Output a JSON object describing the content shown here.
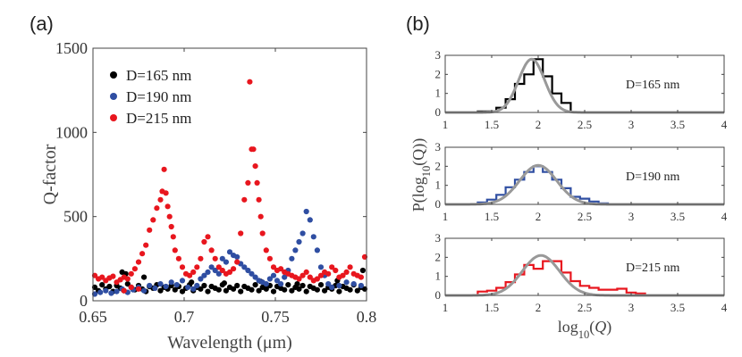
{
  "panel_labels": {
    "a": "(a)",
    "b": "(b)"
  },
  "colors": {
    "black": "#000000",
    "blue": "#2f4ea2",
    "red": "#e8161e",
    "fit": "#999999",
    "axis": "#444444"
  },
  "chart_data": [
    {
      "type": "scatter",
      "panel": "(a)",
      "title": "",
      "xlabel": "Wavelength (μm)",
      "ylabel": "Q-factor",
      "xlim": [
        0.65,
        0.8
      ],
      "ylim": [
        0,
        1500
      ],
      "xticks": [
        "0.65",
        "0.7",
        "0.75",
        "0.8"
      ],
      "yticks": [
        "0",
        "500",
        "1000",
        "1500"
      ],
      "legend_position": "top-left",
      "series": [
        {
          "name": "D=165 nm",
          "color": "black",
          "x": [
            0.651,
            0.653,
            0.655,
            0.657,
            0.659,
            0.661,
            0.663,
            0.665,
            0.667,
            0.669,
            0.671,
            0.673,
            0.675,
            0.677,
            0.679,
            0.681,
            0.683,
            0.685,
            0.687,
            0.689,
            0.691,
            0.693,
            0.695,
            0.697,
            0.699,
            0.701,
            0.703,
            0.705,
            0.707,
            0.709,
            0.711,
            0.713,
            0.715,
            0.717,
            0.719,
            0.721,
            0.723,
            0.725,
            0.727,
            0.729,
            0.731,
            0.733,
            0.735,
            0.737,
            0.739,
            0.741,
            0.743,
            0.745,
            0.747,
            0.749,
            0.751,
            0.753,
            0.755,
            0.757,
            0.759,
            0.761,
            0.763,
            0.765,
            0.767,
            0.769,
            0.771,
            0.773,
            0.775,
            0.777,
            0.779,
            0.781,
            0.783,
            0.785,
            0.787,
            0.789,
            0.791,
            0.793,
            0.795,
            0.797,
            0.799,
            0.666,
            0.668,
            0.678,
            0.704,
            0.722,
            0.742,
            0.762,
            0.784,
            0.798
          ],
          "y": [
            80,
            60,
            95,
            70,
            85,
            55,
            90,
            75,
            60,
            100,
            80,
            65,
            90,
            70,
            55,
            85,
            75,
            95,
            60,
            80,
            70,
            90,
            65,
            85,
            55,
            75,
            95,
            60,
            80,
            70,
            90,
            55,
            85,
            75,
            65,
            95,
            60,
            80,
            70,
            90,
            55,
            85,
            75,
            65,
            95,
            60,
            80,
            70,
            90,
            55,
            85,
            75,
            65,
            95,
            60,
            80,
            70,
            90,
            55,
            85,
            75,
            65,
            95,
            60,
            80,
            70,
            90,
            55,
            85,
            75,
            65,
            95,
            60,
            80,
            70,
            170,
            160,
            140,
            110,
            105,
            115,
            100,
            120,
            180
          ]
        },
        {
          "name": "D=190 nm",
          "color": "blue",
          "x": [
            0.651,
            0.654,
            0.657,
            0.66,
            0.663,
            0.666,
            0.669,
            0.672,
            0.675,
            0.678,
            0.681,
            0.684,
            0.687,
            0.69,
            0.693,
            0.696,
            0.699,
            0.702,
            0.705,
            0.707,
            0.709,
            0.711,
            0.713,
            0.715,
            0.717,
            0.719,
            0.721,
            0.723,
            0.725,
            0.727,
            0.729,
            0.731,
            0.733,
            0.735,
            0.737,
            0.739,
            0.741,
            0.743,
            0.745,
            0.747,
            0.749,
            0.751,
            0.753,
            0.755,
            0.757,
            0.759,
            0.761,
            0.763,
            0.765,
            0.767,
            0.769,
            0.771,
            0.773,
            0.775,
            0.777,
            0.779,
            0.781,
            0.785,
            0.789,
            0.793,
            0.797
          ],
          "y": [
            40,
            50,
            60,
            45,
            55,
            70,
            50,
            65,
            80,
            60,
            90,
            75,
            100,
            85,
            110,
            95,
            120,
            80,
            70,
            90,
            130,
            150,
            170,
            200,
            180,
            160,
            250,
            230,
            290,
            270,
            260,
            220,
            200,
            180,
            160,
            140,
            120,
            110,
            100,
            130,
            150,
            120,
            100,
            140,
            180,
            250,
            300,
            350,
            400,
            530,
            480,
            380,
            300,
            200,
            150,
            100,
            80,
            90,
            110,
            100,
            90
          ]
        },
        {
          "name": "D=215 nm",
          "color": "red",
          "x": [
            0.651,
            0.653,
            0.655,
            0.657,
            0.659,
            0.661,
            0.663,
            0.665,
            0.667,
            0.669,
            0.671,
            0.673,
            0.675,
            0.677,
            0.679,
            0.681,
            0.683,
            0.685,
            0.687,
            0.688,
            0.689,
            0.69,
            0.691,
            0.692,
            0.693,
            0.694,
            0.695,
            0.697,
            0.699,
            0.701,
            0.703,
            0.705,
            0.707,
            0.709,
            0.711,
            0.713,
            0.715,
            0.717,
            0.719,
            0.721,
            0.723,
            0.725,
            0.727,
            0.729,
            0.731,
            0.733,
            0.735,
            0.736,
            0.737,
            0.738,
            0.739,
            0.74,
            0.741,
            0.742,
            0.743,
            0.745,
            0.747,
            0.749,
            0.751,
            0.753,
            0.755,
            0.757,
            0.759,
            0.761,
            0.763,
            0.765,
            0.767,
            0.769,
            0.771,
            0.773,
            0.775,
            0.777,
            0.779,
            0.781,
            0.783,
            0.785,
            0.787,
            0.789,
            0.791,
            0.793,
            0.795,
            0.797,
            0.799,
            0.667,
            0.671,
            0.675
          ],
          "y": [
            150,
            130,
            140,
            120,
            135,
            145,
            110,
            125,
            140,
            130,
            160,
            190,
            230,
            280,
            330,
            420,
            480,
            550,
            600,
            650,
            780,
            640,
            560,
            500,
            440,
            380,
            300,
            250,
            200,
            160,
            150,
            170,
            200,
            250,
            350,
            380,
            300,
            250,
            200,
            180,
            160,
            170,
            190,
            230,
            400,
            600,
            700,
            1300,
            900,
            900,
            800,
            700,
            600,
            500,
            400,
            300,
            250,
            200,
            180,
            190,
            170,
            160,
            150,
            140,
            130,
            150,
            170,
            140,
            120,
            130,
            150,
            170,
            160,
            200,
            180,
            140,
            150,
            170,
            200,
            160,
            150,
            140,
            260,
            60,
            80,
            70
          ]
        }
      ]
    },
    {
      "type": "histogram",
      "panel": "(b)",
      "label": "D=165 nm",
      "color": "black",
      "xlim": [
        1,
        4
      ],
      "ylim": [
        0,
        3
      ],
      "yticks": [
        "0",
        "1",
        "2",
        "3"
      ],
      "bin_edges": [
        1.35,
        1.45,
        1.55,
        1.65,
        1.75,
        1.85,
        1.95,
        2.05,
        2.15,
        2.25,
        2.35
      ],
      "counts": [
        0.05,
        0.05,
        0.25,
        0.7,
        1.5,
        2.0,
        2.8,
        1.9,
        1.0,
        0.5
      ],
      "fit": {
        "mean": 1.93,
        "sigma": 0.14,
        "peak": 2.8
      }
    },
    {
      "type": "histogram",
      "panel": "(b)",
      "label": "D=190 nm",
      "color": "blue",
      "xlim": [
        1,
        4
      ],
      "ylim": [
        0,
        3
      ],
      "yticks": [
        "0",
        "1",
        "2",
        "3"
      ],
      "bin_edges": [
        1.35,
        1.45,
        1.55,
        1.65,
        1.75,
        1.85,
        1.95,
        2.05,
        2.15,
        2.25,
        2.35,
        2.45,
        2.55,
        2.65,
        2.75
      ],
      "counts": [
        0.1,
        0.25,
        0.5,
        0.9,
        1.3,
        1.7,
        2.0,
        1.7,
        1.3,
        0.85,
        0.4,
        0.3,
        0.15,
        0.05
      ],
      "fit": {
        "mean": 2.0,
        "sigma": 0.2,
        "peak": 2.05
      }
    },
    {
      "type": "histogram",
      "panel": "(b)",
      "label": "D=215 nm",
      "color": "red",
      "xlim": [
        1,
        4
      ],
      "ylim": [
        0,
        3
      ],
      "yticks": [
        "0",
        "1",
        "2",
        "3"
      ],
      "xticks": [
        "1",
        "1.5",
        "2",
        "2.5",
        "3",
        "3.5",
        "4"
      ],
      "xlabel": "log10(Q)",
      "shared_ylabel": "P(log10(Q))",
      "bin_edges": [
        1.35,
        1.45,
        1.55,
        1.65,
        1.75,
        1.85,
        1.95,
        2.05,
        2.15,
        2.25,
        2.35,
        2.45,
        2.55,
        2.65,
        2.75,
        2.85,
        2.95,
        3.05,
        3.15
      ],
      "counts": [
        0.2,
        0.25,
        0.4,
        0.7,
        1.1,
        1.6,
        1.4,
        1.8,
        1.8,
        1.2,
        0.75,
        0.5,
        0.4,
        0.3,
        0.3,
        0.35,
        0.15,
        0.1
      ],
      "fit": {
        "mean": 2.03,
        "sigma": 0.2,
        "peak": 2.1
      }
    }
  ]
}
